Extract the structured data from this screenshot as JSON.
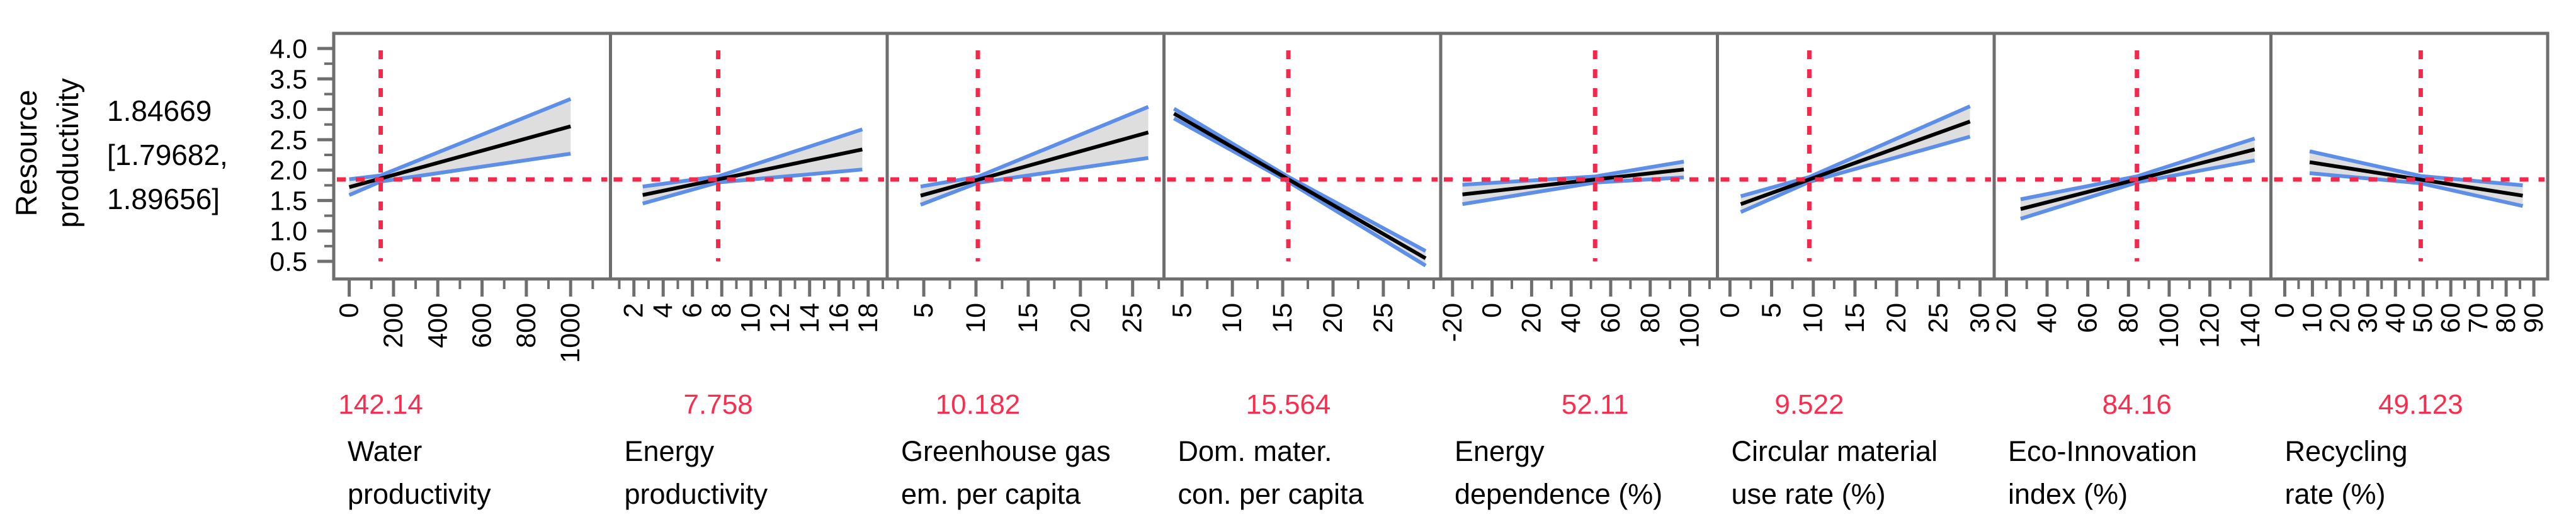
{
  "response": {
    "title_line1": "Resource",
    "title_line2": "productivity",
    "predicted_label": "1.84669",
    "ci_label_line1": "[1.79682,",
    "ci_label_line2": "1.89656]"
  },
  "chart_data": {
    "type": "line",
    "subtype": "prediction-profiler",
    "response_label": "Resource productivity",
    "predicted": 1.84669,
    "ci_lower": 1.79682,
    "ci_upper": 1.89656,
    "y_axis": {
      "ticks": [
        4.0,
        3.5,
        3.0,
        2.5,
        2.0,
        1.5,
        1.0,
        0.5
      ],
      "tick_labels": [
        "4.0",
        "3.5",
        "3.0",
        "2.5",
        "2.0",
        "1.5",
        "1.0",
        "0.5"
      ],
      "minor_step": 0.25,
      "display_min": 0.5,
      "display_max": 4.0
    },
    "crosshair_y": 1.84669,
    "panels": [
      {
        "name": "Water productivity",
        "name_lines": [
          "Water",
          "productivity"
        ],
        "current_value": 142.14,
        "current_value_label": "142.14",
        "axis_min": -70,
        "axis_max": 1180,
        "ticks": [
          0,
          200,
          400,
          600,
          800,
          1000
        ],
        "tick_labels": [
          "0",
          "200",
          "400",
          "600",
          "800",
          "1000"
        ],
        "minor_step": 100,
        "line_x": [
          0,
          1000
        ],
        "line_y": [
          1.72,
          2.72
        ],
        "band_halfwidth": [
          0.13,
          0.05,
          0.45
        ]
      },
      {
        "name": "Energy productivity",
        "name_lines": [
          "Energy",
          "productivity"
        ],
        "current_value": 7.758,
        "current_value_label": "7.758",
        "axis_min": 0.4,
        "axis_max": 19.3,
        "ticks": [
          2,
          4,
          6,
          8,
          10,
          12,
          14,
          16,
          18
        ],
        "tick_labels": [
          "2",
          "4",
          "6",
          "8",
          "10",
          "12",
          "14",
          "16",
          "18"
        ],
        "minor_step": 1,
        "line_x": [
          2.6,
          17.6
        ],
        "line_y": [
          1.59,
          2.34
        ],
        "band_halfwidth": [
          0.14,
          0.05,
          0.33
        ]
      },
      {
        "name": "Greenhouse gas em. per capita",
        "name_lines": [
          "Greenhouse gas",
          "em. per capita"
        ],
        "current_value": 10.182,
        "current_value_label": "10.182",
        "axis_min": 1.5,
        "axis_max": 28,
        "ticks": [
          5,
          10,
          15,
          20,
          25
        ],
        "tick_labels": [
          "5",
          "10",
          "15",
          "20",
          "25"
        ],
        "minor_step": 2.5,
        "line_x": [
          4.7,
          26.5
        ],
        "line_y": [
          1.58,
          2.62
        ],
        "band_halfwidth": [
          0.15,
          0.05,
          0.42
        ]
      },
      {
        "name": "Dom. mater. con. per capita",
        "name_lines": [
          "Dom. mater.",
          "con. per capita"
        ],
        "current_value": 15.564,
        "current_value_label": "15.564",
        "axis_min": 3.2,
        "axis_max": 30.7,
        "ticks": [
          5,
          10,
          15,
          20,
          25
        ],
        "tick_labels": [
          "5",
          "10",
          "15",
          "20",
          "25"
        ],
        "minor_step": 2.5,
        "line_x": [
          4.2,
          29.2
        ],
        "line_y": [
          2.93,
          0.55
        ],
        "band_halfwidth": [
          0.08,
          0.04,
          0.12
        ]
      },
      {
        "name": "Energy dependence (%)",
        "name_lines": [
          "Energy",
          "dependence (%)"
        ],
        "current_value": 52.11,
        "current_value_label": "52.11",
        "axis_min": -26,
        "axis_max": 114,
        "ticks": [
          -20,
          0,
          20,
          40,
          60,
          80,
          100
        ],
        "tick_labels": [
          "-20",
          "0",
          "20",
          "40",
          "60",
          "80",
          "100"
        ],
        "minor_step": 10,
        "line_x": [
          -15,
          97
        ],
        "line_y": [
          1.6,
          2.01
        ],
        "band_halfwidth": [
          0.16,
          0.05,
          0.13
        ]
      },
      {
        "name": "Circular material use rate (%)",
        "name_lines": [
          "Circular material",
          "use rate (%)"
        ],
        "current_value": 9.522,
        "current_value_label": "9.522",
        "axis_min": -1.5,
        "axis_max": 31.7,
        "ticks": [
          0,
          5,
          10,
          15,
          20,
          25,
          30
        ],
        "tick_labels": [
          "0",
          "5",
          "10",
          "15",
          "20",
          "25",
          "30"
        ],
        "minor_step": 2.5,
        "line_x": [
          1.3,
          28.8
        ],
        "line_y": [
          1.44,
          2.8
        ],
        "band_halfwidth": [
          0.13,
          0.04,
          0.25
        ]
      },
      {
        "name": "Eco-Innovation index (%)",
        "name_lines": [
          "Eco-Innovation",
          "index (%)"
        ],
        "current_value": 84.16,
        "current_value_label": "84.16",
        "axis_min": 14,
        "axis_max": 150,
        "ticks": [
          20,
          40,
          60,
          80,
          100,
          120,
          140
        ],
        "tick_labels": [
          "20",
          "40",
          "60",
          "80",
          "100",
          "120",
          "140"
        ],
        "minor_step": 10,
        "line_x": [
          27,
          142
        ],
        "line_y": [
          1.36,
          2.34
        ],
        "band_halfwidth": [
          0.16,
          0.05,
          0.18
        ]
      },
      {
        "name": "Recycling rate (%)",
        "name_lines": [
          "Recycling",
          "rate (%)"
        ],
        "current_value": 49.123,
        "current_value_label": "49.123",
        "axis_min": -5,
        "axis_max": 95,
        "ticks": [
          0,
          10,
          20,
          30,
          40,
          50,
          60,
          70,
          80,
          90
        ],
        "tick_labels": [
          "0",
          "10",
          "20",
          "30",
          "40",
          "50",
          "60",
          "70",
          "80",
          "90"
        ],
        "minor_step": 5,
        "line_x": [
          9,
          86
        ],
        "line_y": [
          2.13,
          1.58
        ],
        "band_halfwidth": [
          0.18,
          0.06,
          0.17
        ]
      }
    ],
    "colors": {
      "crosshair_red": "#F4284A",
      "band_fill": "#DEDEDE",
      "band_edge_blue": "#5E8FE8",
      "fit_line": "#000000",
      "frame_gray": "#6E6E6E",
      "tick_gray": "#6E6E6E",
      "value_label_red": "#FB2C4D",
      "text_black": "#000000"
    },
    "layout_hints": {
      "grid": false,
      "legend": false,
      "x_tick_label_rotation_deg": -90
    }
  }
}
